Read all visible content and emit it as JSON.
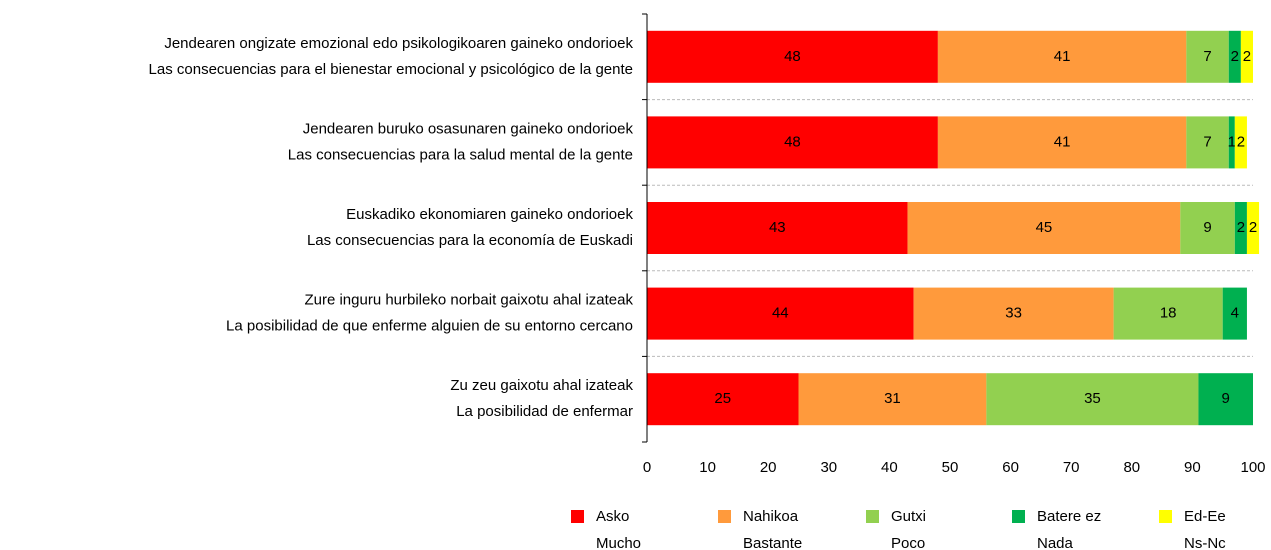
{
  "chart_data": {
    "type": "stacked_bar_horizontal",
    "categories": [
      [
        "Jendearen ongizate emozional edo psikologikoaren gaineko ondorioek",
        "Las consecuencias para el bienestar emocional y psicológico de la gente"
      ],
      [
        "Jendearen buruko osasunaren gaineko ondorioek",
        "Las consecuencias para la salud mental de la gente"
      ],
      [
        "Euskadiko ekonomiaren gaineko ondorioek",
        "Las consecuencias para la economía de Euskadi"
      ],
      [
        "Zure inguru hurbileko norbait gaixotu ahal izateak",
        "La posibilidad de que enferme alguien de su entorno cercano"
      ],
      [
        "Zu zeu gaixotu ahal izateak",
        "La posibilidad de enfermar"
      ]
    ],
    "series": [
      {
        "name": [
          "Asko",
          "Mucho"
        ],
        "color": "#ff0000",
        "values": [
          48,
          48,
          43,
          44,
          25
        ]
      },
      {
        "name": [
          "Nahikoa",
          "Bastante"
        ],
        "color": "#ff9a3c",
        "values": [
          41,
          41,
          45,
          33,
          31
        ]
      },
      {
        "name": [
          "Gutxi",
          "Poco"
        ],
        "color": "#92d050",
        "values": [
          7,
          7,
          9,
          18,
          35
        ]
      },
      {
        "name": [
          "Batere ez",
          "Nada"
        ],
        "color": "#00b050",
        "values": [
          2,
          1,
          2,
          4,
          9
        ]
      },
      {
        "name": [
          "Ed-Ee",
          "Ns-Nc"
        ],
        "color": "#ffff00",
        "values": [
          2,
          2,
          2,
          null,
          null
        ]
      }
    ],
    "xlim": [
      0,
      100
    ],
    "xticks": [
      0,
      10,
      20,
      30,
      40,
      50,
      60,
      70,
      80,
      90,
      100
    ],
    "legend": "bottom"
  }
}
